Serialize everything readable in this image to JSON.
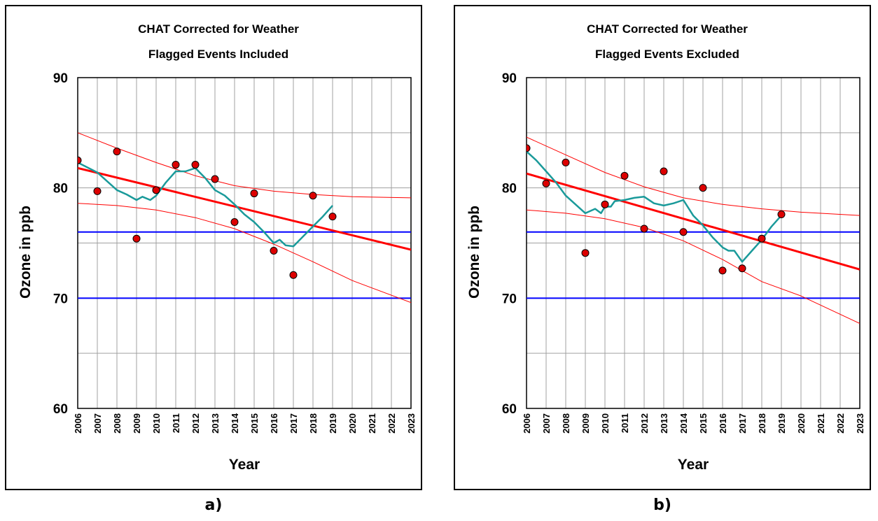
{
  "colors": {
    "regression": "#ff0000",
    "confidence": "#ff0000",
    "smooth": "#1a9a9a",
    "standards": "#0000ff",
    "point_fill": "#dd0000",
    "grid": "#a0a0a0"
  },
  "panels": [
    {
      "id": "a",
      "caption": "a)"
    },
    {
      "id": "b",
      "caption": "b)"
    }
  ],
  "chart_data": [
    {
      "type": "scatter",
      "title": "CHAT Corrected for Weather",
      "subtitle": "Flagged Events Included",
      "xlabel": "Year",
      "ylabel": "Ozone in ppb",
      "xlim": [
        2006,
        2023
      ],
      "ylim": [
        60,
        90
      ],
      "x_ticks": [
        2006,
        2007,
        2008,
        2009,
        2010,
        2011,
        2012,
        2013,
        2014,
        2015,
        2016,
        2017,
        2018,
        2019,
        2020,
        2021,
        2022,
        2023
      ],
      "y_ticks": [
        60,
        70,
        80,
        90
      ],
      "grid": true,
      "points": {
        "x": [
          2006,
          2007,
          2008,
          2009,
          2010,
          2011,
          2012,
          2013,
          2014,
          2015,
          2016,
          2017,
          2018,
          2019
        ],
        "y": [
          82.5,
          79.7,
          83.3,
          75.4,
          79.8,
          82.1,
          82.1,
          80.8,
          76.9,
          79.5,
          74.3,
          72.1,
          79.3,
          77.4
        ]
      },
      "trend_line": {
        "x": [
          2006,
          2023
        ],
        "y": [
          81.8,
          74.4
        ]
      },
      "upper_band": {
        "x": [
          2006,
          2008,
          2010,
          2012,
          2014,
          2016,
          2018,
          2020,
          2023
        ],
        "y": [
          85.0,
          83.6,
          82.3,
          81.1,
          80.2,
          79.7,
          79.4,
          79.2,
          79.1
        ]
      },
      "lower_band": {
        "x": [
          2006,
          2008,
          2010,
          2012,
          2014,
          2016,
          2018,
          2020,
          2023
        ],
        "y": [
          78.6,
          78.4,
          78.0,
          77.3,
          76.3,
          74.9,
          73.3,
          71.6,
          69.6
        ]
      },
      "smooth_curve": {
        "x": [
          2006,
          2007,
          2007.5,
          2008,
          2008.5,
          2009,
          2009.3,
          2009.7,
          2010,
          2010.5,
          2011,
          2011.5,
          2012,
          2012.5,
          2013,
          2013.5,
          2014,
          2014.5,
          2015,
          2015.5,
          2016,
          2016.3,
          2016.6,
          2017,
          2017.5,
          2018,
          2018.5,
          2019
        ],
        "y": [
          82.3,
          81.4,
          80.6,
          79.8,
          79.4,
          78.9,
          79.2,
          78.9,
          79.3,
          80.5,
          81.5,
          81.5,
          81.8,
          80.9,
          79.8,
          79.3,
          78.5,
          77.6,
          76.9,
          76.0,
          75.0,
          75.3,
          74.8,
          74.7,
          75.6,
          76.5,
          77.4,
          78.4
        ]
      },
      "reference_lines": [
        70,
        76
      ]
    },
    {
      "type": "scatter",
      "title": "CHAT Corrected for Weather",
      "subtitle": "Flagged Events Excluded",
      "xlabel": "Year",
      "ylabel": "Ozone in ppb",
      "xlim": [
        2006,
        2023
      ],
      "ylim": [
        60,
        90
      ],
      "x_ticks": [
        2006,
        2007,
        2008,
        2009,
        2010,
        2011,
        2012,
        2013,
        2014,
        2015,
        2016,
        2017,
        2018,
        2019,
        2020,
        2021,
        2022,
        2023
      ],
      "y_ticks": [
        60,
        70,
        80,
        90
      ],
      "grid": true,
      "points": {
        "x": [
          2006,
          2007,
          2008,
          2009,
          2010,
          2011,
          2012,
          2013,
          2014,
          2015,
          2016,
          2017,
          2018,
          2019
        ],
        "y": [
          83.6,
          80.4,
          82.3,
          74.1,
          78.5,
          81.1,
          76.3,
          81.5,
          76.0,
          80.0,
          72.5,
          72.7,
          75.4,
          77.6
        ]
      },
      "trend_line": {
        "x": [
          2006,
          2023
        ],
        "y": [
          81.3,
          72.6
        ]
      },
      "upper_band": {
        "x": [
          2006,
          2008,
          2010,
          2012,
          2014,
          2016,
          2018,
          2020,
          2023
        ],
        "y": [
          84.6,
          83.0,
          81.4,
          80.1,
          79.1,
          78.5,
          78.1,
          77.8,
          77.5
        ]
      },
      "lower_band": {
        "x": [
          2006,
          2008,
          2010,
          2012,
          2014,
          2016,
          2018,
          2020,
          2023
        ],
        "y": [
          78.0,
          77.7,
          77.2,
          76.4,
          75.2,
          73.5,
          71.5,
          70.2,
          67.7
        ]
      },
      "smooth_curve": {
        "x": [
          2006,
          2006.5,
          2007,
          2007.5,
          2008,
          2008.5,
          2009,
          2009.5,
          2009.8,
          2010,
          2010.3,
          2010.5,
          2011,
          2011.5,
          2012,
          2012.5,
          2013,
          2013.5,
          2014,
          2014.5,
          2015,
          2015.5,
          2016,
          2016.3,
          2016.6,
          2017,
          2017.5,
          2018,
          2018.5,
          2019
        ],
        "y": [
          83.3,
          82.5,
          81.5,
          80.5,
          79.3,
          78.5,
          77.7,
          78.1,
          77.7,
          78.3,
          78.3,
          78.8,
          78.9,
          79.1,
          79.2,
          78.6,
          78.4,
          78.6,
          78.9,
          77.5,
          76.6,
          75.5,
          74.6,
          74.3,
          74.3,
          73.3,
          74.3,
          75.3,
          76.5,
          77.5
        ]
      },
      "reference_lines": [
        70,
        76
      ]
    }
  ]
}
